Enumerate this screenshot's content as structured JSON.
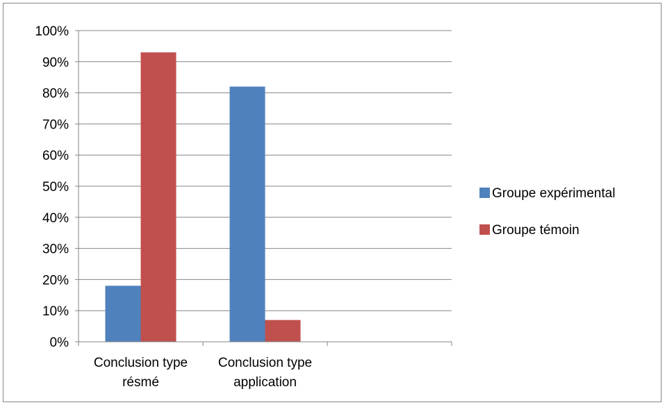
{
  "chart_data": {
    "type": "bar",
    "categories": [
      [
        "Conclusion type",
        "résmé"
      ],
      [
        "Conclusion type",
        "application"
      ],
      [
        "",
        ""
      ]
    ],
    "series": [
      {
        "name": "Groupe expérimental",
        "values": [
          18,
          82,
          null
        ],
        "color": "#4f81bd"
      },
      {
        "name": "Groupe témoin",
        "values": [
          93,
          7,
          null
        ],
        "color": "#c0504d"
      }
    ],
    "ylim": [
      0,
      100
    ],
    "yticks": [
      "0%",
      "10%",
      "20%",
      "30%",
      "40%",
      "50%",
      "60%",
      "70%",
      "80%",
      "90%",
      "100%"
    ],
    "grid": true,
    "legend_position": "right",
    "title": "",
    "xlabel": "",
    "ylabel": ""
  }
}
